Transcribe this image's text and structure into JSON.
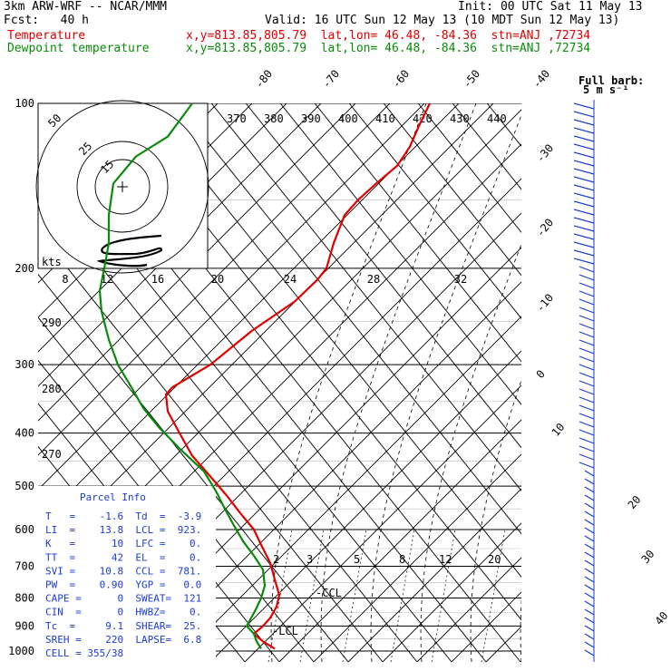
{
  "header": {
    "model": "3km ARW-WRF -- NCAR/MMM",
    "init": "Init: 00 UTC Sat 11 May 13",
    "fcst": "Fcst:   40 h",
    "valid": "Valid: 16 UTC Sun 12 May 13 (10 MDT Sun 12 May 13)",
    "temp_line": "Temperature",
    "temp_info": "x,y=813.85,805.79  lat,lon= 46.48, -84.36  stn=ANJ ,72734",
    "dew_line": "Dewpoint temperature",
    "dew_info": "x,y=813.85,805.79  lat,lon= 46.48, -84.36  stn=ANJ ,72734"
  },
  "barb_label": {
    "line1": "Full barb:",
    "line2": "5 m s⁻¹"
  },
  "colors": {
    "temperature": "#e00000",
    "dewpoint": "#0a8a0a",
    "parcel": "#1b3bd6",
    "grid": "#000000",
    "hodograph": "#000000"
  },
  "chart_data": {
    "type": "line",
    "skewt": true,
    "pressure_ticks": [
      100,
      200,
      300,
      400,
      500,
      600,
      700,
      800,
      900,
      1000
    ],
    "pressure_range_hpa": [
      1000,
      100
    ],
    "isotherm_labels": [
      "-80",
      "-70",
      "-60",
      "-50",
      "-40",
      "-30",
      "-20",
      "-10",
      "0",
      "10",
      "20",
      "30",
      "40"
    ],
    "theta_e_labels": [
      "370",
      "380",
      "390",
      "400",
      "410",
      "420",
      "430",
      "440"
    ],
    "mixing_ratio_labels": [
      "2",
      "3",
      "5",
      "8",
      "12",
      "20"
    ],
    "hodo_ring_labels": [
      "50",
      "25",
      "15"
    ],
    "hodo_speed_unit": "kts",
    "hodo_axis_labels": [
      "8",
      "12",
      "16",
      "20",
      "24",
      "28",
      "32"
    ],
    "theta_labels": [
      "290",
      "280",
      "270"
    ],
    "ccl_label": "-CCL",
    "lcl_label": "-LCL",
    "series": [
      {
        "name": "Temperature",
        "points": [
          {
            "p": 990,
            "x": 303
          },
          {
            "p": 960,
            "x": 290
          },
          {
            "p": 930,
            "x": 280
          },
          {
            "p": 900,
            "x": 290
          },
          {
            "p": 870,
            "x": 298
          },
          {
            "p": 830,
            "x": 305
          },
          {
            "p": 790,
            "x": 308
          },
          {
            "p": 740,
            "x": 303
          },
          {
            "p": 690,
            "x": 298
          },
          {
            "p": 640,
            "x": 288
          },
          {
            "p": 600,
            "x": 280
          },
          {
            "p": 560,
            "x": 265
          },
          {
            "p": 520,
            "x": 250
          },
          {
            "p": 480,
            "x": 232
          },
          {
            "p": 440,
            "x": 212
          },
          {
            "p": 400,
            "x": 198
          },
          {
            "p": 365,
            "x": 185
          },
          {
            "p": 340,
            "x": 183
          },
          {
            "p": 330,
            "x": 190
          },
          {
            "p": 300,
            "x": 232
          },
          {
            "p": 260,
            "x": 278
          },
          {
            "p": 230,
            "x": 325
          },
          {
            "p": 210,
            "x": 350
          },
          {
            "p": 200,
            "x": 360
          },
          {
            "p": 180,
            "x": 368
          },
          {
            "p": 160,
            "x": 380
          },
          {
            "p": 150,
            "x": 395
          },
          {
            "p": 140,
            "x": 415
          },
          {
            "p": 130,
            "x": 438
          },
          {
            "p": 120,
            "x": 452
          },
          {
            "p": 110,
            "x": 462
          },
          {
            "p": 100,
            "x": 474
          }
        ]
      },
      {
        "name": "Dewpoint temperature",
        "points": [
          {
            "p": 990,
            "x": 288
          },
          {
            "p": 960,
            "x": 283
          },
          {
            "p": 930,
            "x": 280
          },
          {
            "p": 900,
            "x": 272
          },
          {
            "p": 870,
            "x": 277
          },
          {
            "p": 840,
            "x": 282
          },
          {
            "p": 800,
            "x": 288
          },
          {
            "p": 760,
            "x": 292
          },
          {
            "p": 710,
            "x": 290
          },
          {
            "p": 670,
            "x": 280
          },
          {
            "p": 630,
            "x": 268
          },
          {
            "p": 590,
            "x": 258
          },
          {
            "p": 550,
            "x": 248
          },
          {
            "p": 510,
            "x": 238
          },
          {
            "p": 470,
            "x": 225
          },
          {
            "p": 430,
            "x": 200
          },
          {
            "p": 390,
            "x": 175
          },
          {
            "p": 360,
            "x": 158
          },
          {
            "p": 330,
            "x": 145
          },
          {
            "p": 300,
            "x": 130
          },
          {
            "p": 270,
            "x": 120
          },
          {
            "p": 240,
            "x": 112
          },
          {
            "p": 220,
            "x": 110
          },
          {
            "p": 200,
            "x": 115
          },
          {
            "p": 180,
            "x": 120
          },
          {
            "p": 160,
            "x": 120
          },
          {
            "p": 140,
            "x": 125
          },
          {
            "p": 125,
            "x": 150
          },
          {
            "p": 115,
            "x": 185
          },
          {
            "p": 100,
            "x": 212
          }
        ]
      }
    ],
    "parcel_info": {
      "title": "Parcel Info",
      "rows": [
        "T   =    -1.6  Td  =  -3.9",
        "LI  =    13.8  LCL =  923.",
        "K   =      10  LFC =    0.",
        "TT  =      42  EL  =    0.",
        "SVI =    10.8  CCL =  781.",
        "PW  =    0.90  YGP =   0.0",
        "CAPE =      0  SWEAT=  121",
        "CIN  =      0  HWBZ=    0.",
        "Tc  =     9.1  SHEAR=  25.",
        "SREH =    220  LAPSE=  6.8",
        "CELL = 355/38"
      ]
    }
  }
}
